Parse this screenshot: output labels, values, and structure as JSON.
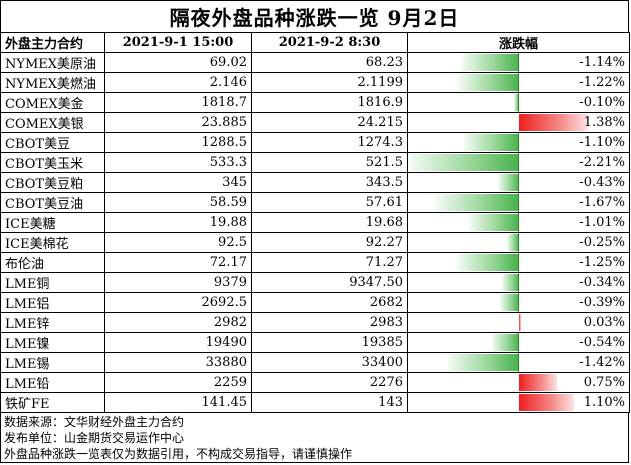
{
  "title": "隔夜外盘品种涨跌一览 9月2日",
  "headers": {
    "name": "外盘主力合约",
    "prev": "2021-9-1 15:00",
    "curr": "2021-9-2 8:30",
    "change": "涨跌幅"
  },
  "colors": {
    "down": "#47b24a",
    "up": "#ef1f1f"
  },
  "rows": [
    {
      "name": "NYMEX美原油",
      "prev": "69.02",
      "curr": "68.23",
      "change": "-1.14%",
      "pct": -1.14
    },
    {
      "name": "NYMEX美燃油",
      "prev": "2.146",
      "curr": "2.1199",
      "change": "-1.22%",
      "pct": -1.22
    },
    {
      "name": "COMEX美金",
      "prev": "1818.7",
      "curr": "1816.9",
      "change": "-0.10%",
      "pct": -0.1
    },
    {
      "name": "COMEX美银",
      "prev": "23.885",
      "curr": "24.215",
      "change": "1.38%",
      "pct": 1.38
    },
    {
      "name": "CBOT美豆",
      "prev": "1288.5",
      "curr": "1274.3",
      "change": "-1.10%",
      "pct": -1.1
    },
    {
      "name": "CBOT美玉米",
      "prev": "533.3",
      "curr": "521.5",
      "change": "-2.21%",
      "pct": -2.21
    },
    {
      "name": "CBOT美豆粕",
      "prev": "345",
      "curr": "343.5",
      "change": "-0.43%",
      "pct": -0.43
    },
    {
      "name": "CBOT美豆油",
      "prev": "58.59",
      "curr": "57.61",
      "change": "-1.67%",
      "pct": -1.67
    },
    {
      "name": "ICE美糖",
      "prev": "19.88",
      "curr": "19.68",
      "change": "-1.01%",
      "pct": -1.01
    },
    {
      "name": "ICE美棉花",
      "prev": "92.5",
      "curr": "92.27",
      "change": "-0.25%",
      "pct": -0.25
    },
    {
      "name": "布伦油",
      "prev": "72.17",
      "curr": "71.27",
      "change": "-1.25%",
      "pct": -1.25
    },
    {
      "name": "LME铜",
      "prev": "9379",
      "curr": "9347.50",
      "change": "-0.34%",
      "pct": -0.34
    },
    {
      "name": "LME铝",
      "prev": "2692.5",
      "curr": "2682",
      "change": "-0.39%",
      "pct": -0.39
    },
    {
      "name": "LME锌",
      "prev": "2982",
      "curr": "2983",
      "change": "0.03%",
      "pct": 0.03
    },
    {
      "name": "LME镍",
      "prev": "19490",
      "curr": "19385",
      "change": "-0.54%",
      "pct": -0.54
    },
    {
      "name": "LME锡",
      "prev": "33880",
      "curr": "33400",
      "change": "-1.42%",
      "pct": -1.42
    },
    {
      "name": "LME铅",
      "prev": "2259",
      "curr": "2276",
      "change": "0.75%",
      "pct": 0.75
    },
    {
      "name": "铁矿FE",
      "prev": "141.45",
      "curr": "143",
      "change": "1.10%",
      "pct": 1.1
    }
  ],
  "footer": {
    "source": "数据来源：文华财经外盘主力合约",
    "publisher": "发布单位：山金期货交易运作中心",
    "disclaimer": "外盘品种涨跌一览表仅为数据引用，不构成交易指导，请谨慎操作"
  }
}
